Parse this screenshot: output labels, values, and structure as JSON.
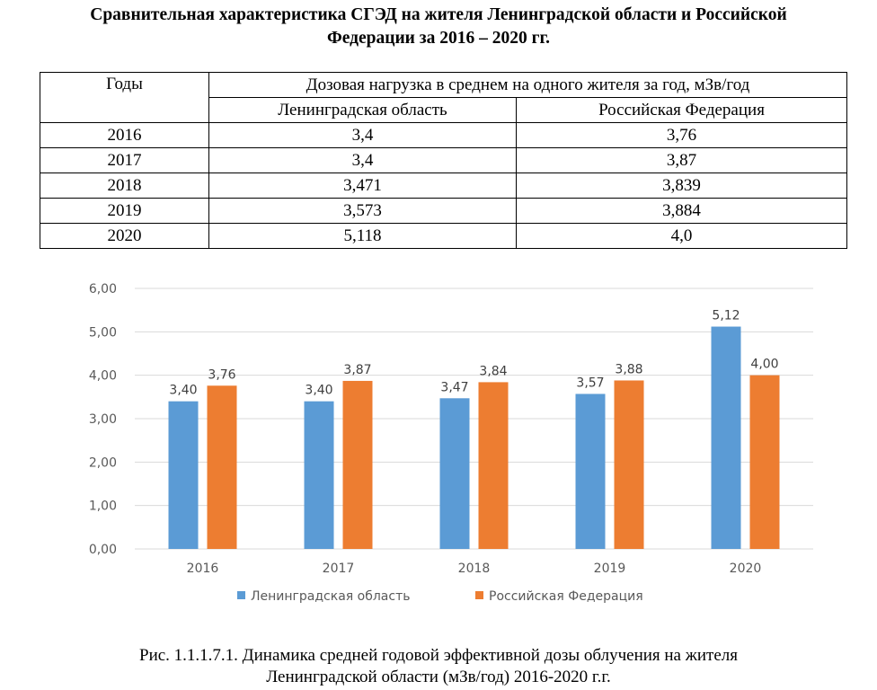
{
  "heading": {
    "line1": "Сравнительная характеристика СГЭД на жителя Ленинградской области и Российской",
    "line2": "Федерации за 2016 – 2020 гг."
  },
  "table": {
    "col_years": "Годы",
    "col_group": "Дозовая нагрузка в среднем на одного жителя за год, мЗв/год",
    "col_leno": "Ленинградская область",
    "col_rf": "Российская Федерация",
    "rows": [
      {
        "year": "2016",
        "leno": "3,4",
        "rf": "3,76"
      },
      {
        "year": "2017",
        "leno": "3,4",
        "rf": "3,87"
      },
      {
        "year": "2018",
        "leno": "3,471",
        "rf": "3,839"
      },
      {
        "year": "2019",
        "leno": "3,573",
        "rf": "3,884"
      },
      {
        "year": "2020",
        "leno": "5,118",
        "rf": "4,0"
      }
    ]
  },
  "chart_data": {
    "type": "bar",
    "categories": [
      "2016",
      "2017",
      "2018",
      "2019",
      "2020"
    ],
    "series": [
      {
        "name": "Ленинградская область",
        "color": "#5b9bd5",
        "values": [
          3.4,
          3.4,
          3.47,
          3.57,
          5.12
        ],
        "labels": [
          "3,40",
          "3,40",
          "3,47",
          "3,57",
          "5,12"
        ]
      },
      {
        "name": "Российская Федерация",
        "color": "#ed7d31",
        "values": [
          3.76,
          3.87,
          3.84,
          3.88,
          4.0
        ],
        "labels": [
          "3,76",
          "3,87",
          "3,84",
          "3,88",
          "4,00"
        ]
      }
    ],
    "ylim": [
      0,
      6
    ],
    "yticks": [
      "0,00",
      "1,00",
      "2,00",
      "3,00",
      "4,00",
      "5,00",
      "6,00"
    ],
    "grid": true,
    "legend": "bottom",
    "title": "",
    "xlabel": "",
    "ylabel": ""
  },
  "caption": {
    "line1": "Рис. 1.1.1.7.1. Динамика средней годовой эффективной дозы облучения на жителя",
    "line2": "Ленинградской области (мЗв/год) 2016-2020 г.г."
  }
}
